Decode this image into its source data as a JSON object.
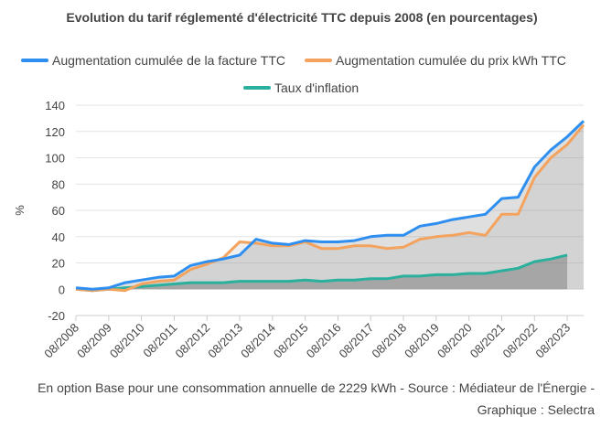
{
  "chart_data": {
    "type": "line",
    "title": "Evolution du tarif réglementé d'électricité TTC depuis 2008 (en pourcentages)",
    "y_label": "%",
    "footnote": "En option Base pour une consommation annuelle de 2229 kWh - Source : Médiateur de l'Énergie - Graphique : Selectra",
    "categories": [
      "08/2008",
      null,
      "08/2009",
      null,
      "08/2010",
      null,
      "08/2011",
      null,
      "08/2012",
      null,
      "08/2013",
      null,
      "08/2014",
      null,
      "08/2015",
      null,
      "08/2016",
      null,
      "08/2017",
      null,
      "08/2018",
      null,
      "08/2019",
      null,
      "08/2020",
      null,
      "08/2021",
      null,
      "08/2022",
      null,
      "08/2023",
      null
    ],
    "series": [
      {
        "name": "Augmentation cumulée de la facture TTC",
        "color": "#2e8ff0",
        "fill": "rgba(150,150,150,0.3)",
        "values": [
          1,
          0,
          1,
          5,
          7,
          9,
          10,
          18,
          21,
          23,
          26,
          38,
          35,
          34,
          37,
          36,
          36,
          37,
          40,
          41,
          41,
          48,
          50,
          53,
          55,
          57,
          69,
          70,
          93,
          106,
          116,
          128
        ]
      },
      {
        "name": "Augmentation cumulée du prix kWh TTC",
        "color": "#f4a35f",
        "fill": "rgba(150,150,150,0.15)",
        "values": [
          0,
          -1,
          0,
          -1,
          4,
          6,
          7,
          15,
          19,
          24,
          36,
          35,
          33,
          33,
          36,
          31,
          31,
          33,
          33,
          31,
          32,
          38,
          40,
          41,
          43,
          41,
          57,
          57,
          85,
          100,
          110,
          125
        ]
      },
      {
        "name": "Taux d'inflation",
        "color": "#2ab09c",
        "fill": "rgba(110,110,110,0.45)",
        "values": [
          0,
          -1,
          0,
          1,
          2,
          3,
          4,
          5,
          5,
          5,
          6,
          6,
          6,
          6,
          7,
          6,
          7,
          7,
          8,
          8,
          10,
          10,
          11,
          11,
          12,
          12,
          14,
          16,
          21,
          23,
          26,
          null
        ]
      }
    ],
    "ylim": [
      -20,
      140
    ],
    "yticks": [
      -20,
      0,
      20,
      40,
      60,
      80,
      100,
      120,
      140
    ],
    "grid": true
  }
}
